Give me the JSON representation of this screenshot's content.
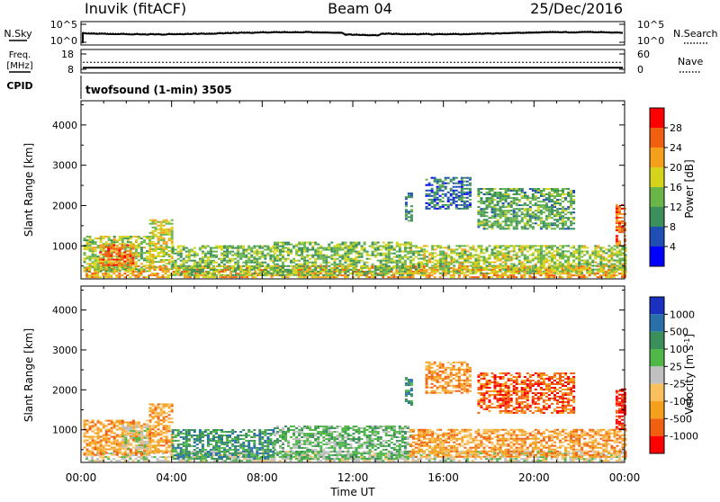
{
  "header": {
    "station": "Inuvik (fitACF)",
    "beam": "Beam 04",
    "date": "25/Dec/2016"
  },
  "noise_panel": {
    "left_label": "N.Sky",
    "right_label": "N.Search",
    "left_ticks": [
      "10^5",
      "10^0"
    ],
    "right_ticks": [
      "10^5",
      "10^0"
    ]
  },
  "freq_panel": {
    "left_label_1": "Freq.",
    "left_label_2": "[MHz]",
    "right_label": "Nave",
    "left_ticks": [
      "18",
      "8"
    ],
    "right_ticks": [
      "60",
      "0"
    ],
    "frequency_mhz": 9,
    "nave": 27
  },
  "cpid": {
    "label": "CPID",
    "program": "twofsound (1-min) 3505"
  },
  "colors": {
    "power": [
      "#0000ff",
      "#1f4fb5",
      "#3a8f5a",
      "#6ab54a",
      "#d4d41c",
      "#f5a01c",
      "#f06010",
      "#ff0000"
    ],
    "velocity": [
      "#ff0000",
      "#f06010",
      "#f5a01c",
      "#fac060",
      "#c0c0c0",
      "#4fb848",
      "#3a8f5a",
      "#2a70a8",
      "#1a30c0"
    ]
  },
  "chart_data": [
    {
      "type": "heatmap",
      "name": "power",
      "xlabel": "Time UT",
      "ylabel": "Slant Range [km]",
      "xlim_hours": [
        0,
        24
      ],
      "ylim_km": [
        180,
        4600
      ],
      "y_ticks": [
        1000,
        2000,
        3000,
        4000
      ],
      "x_tick_labels": [
        "00:00",
        "04:00",
        "08:00",
        "12:00",
        "16:00",
        "20:00",
        "00:00"
      ],
      "colorbar_label": "Power [dB]",
      "colorbar_ticks": [
        "4",
        "8",
        "12",
        "16",
        "20",
        "24",
        "28"
      ],
      "regions": [
        {
          "t0": 0.2,
          "t1": 24,
          "r0": 200,
          "r1": 500,
          "v": 22
        },
        {
          "t0": 0.1,
          "t1": 3.0,
          "r0": 350,
          "r1": 1250,
          "v": 16
        },
        {
          "t0": 0.8,
          "t1": 2.3,
          "r0": 500,
          "r1": 1000,
          "v": 26
        },
        {
          "t0": 3.0,
          "t1": 4.0,
          "r0": 400,
          "r1": 1650,
          "v": 18
        },
        {
          "t0": 4.0,
          "t1": 8.5,
          "r0": 250,
          "r1": 1000,
          "v": 14
        },
        {
          "t0": 8.5,
          "t1": 14.5,
          "r0": 250,
          "r1": 1100,
          "v": 14
        },
        {
          "t0": 14.3,
          "t1": 14.6,
          "r0": 1600,
          "r1": 2300,
          "v": 10
        },
        {
          "t0": 15.2,
          "t1": 17.2,
          "r0": 1900,
          "r1": 2700,
          "v": 8
        },
        {
          "t0": 17.5,
          "t1": 21.8,
          "r0": 1400,
          "r1": 2400,
          "v": 12
        },
        {
          "t0": 14.5,
          "t1": 24,
          "r0": 300,
          "r1": 1000,
          "v": 16
        },
        {
          "t0": 23.6,
          "t1": 24,
          "r0": 1000,
          "r1": 2000,
          "v": 26
        }
      ]
    },
    {
      "type": "heatmap",
      "name": "velocity",
      "xlabel": "Time UT",
      "ylabel": "Slant Range [km]",
      "xlim_hours": [
        0,
        24
      ],
      "ylim_km": [
        180,
        4600
      ],
      "y_ticks": [
        1000,
        2000,
        3000,
        4000
      ],
      "x_tick_labels": [
        "00:00",
        "04:00",
        "08:00",
        "12:00",
        "16:00",
        "20:00",
        "00:00"
      ],
      "colorbar_label": "Velocity [m s^-1]",
      "colorbar_ticks": [
        "1000",
        "500",
        "100",
        "25",
        "-25",
        "-100",
        "-500",
        "-1000"
      ],
      "regions": [
        {
          "t0": 0.2,
          "t1": 24,
          "r0": 200,
          "r1": 450,
          "v": 4
        },
        {
          "t0": 0.1,
          "t1": 3.0,
          "r0": 350,
          "r1": 1250,
          "v": 2
        },
        {
          "t0": 1.8,
          "t1": 3.0,
          "r0": 500,
          "r1": 1100,
          "v": 4
        },
        {
          "t0": 3.0,
          "t1": 4.0,
          "r0": 400,
          "r1": 1650,
          "v": 2
        },
        {
          "t0": 4.0,
          "t1": 8.5,
          "r0": 250,
          "r1": 1000,
          "v": 6
        },
        {
          "t0": 8.5,
          "t1": 14.5,
          "r0": 250,
          "r1": 1100,
          "v": 5
        },
        {
          "t0": 14.3,
          "t1": 14.6,
          "r0": 1600,
          "r1": 2300,
          "v": 6
        },
        {
          "t0": 15.2,
          "t1": 17.2,
          "r0": 1900,
          "r1": 2700,
          "v": 2
        },
        {
          "t0": 17.5,
          "t1": 21.8,
          "r0": 1400,
          "r1": 2400,
          "v": 1
        },
        {
          "t0": 14.5,
          "t1": 24,
          "r0": 300,
          "r1": 1000,
          "v": 2
        },
        {
          "t0": 23.6,
          "t1": 24,
          "r0": 1000,
          "r1": 2000,
          "v": 0
        }
      ]
    }
  ]
}
